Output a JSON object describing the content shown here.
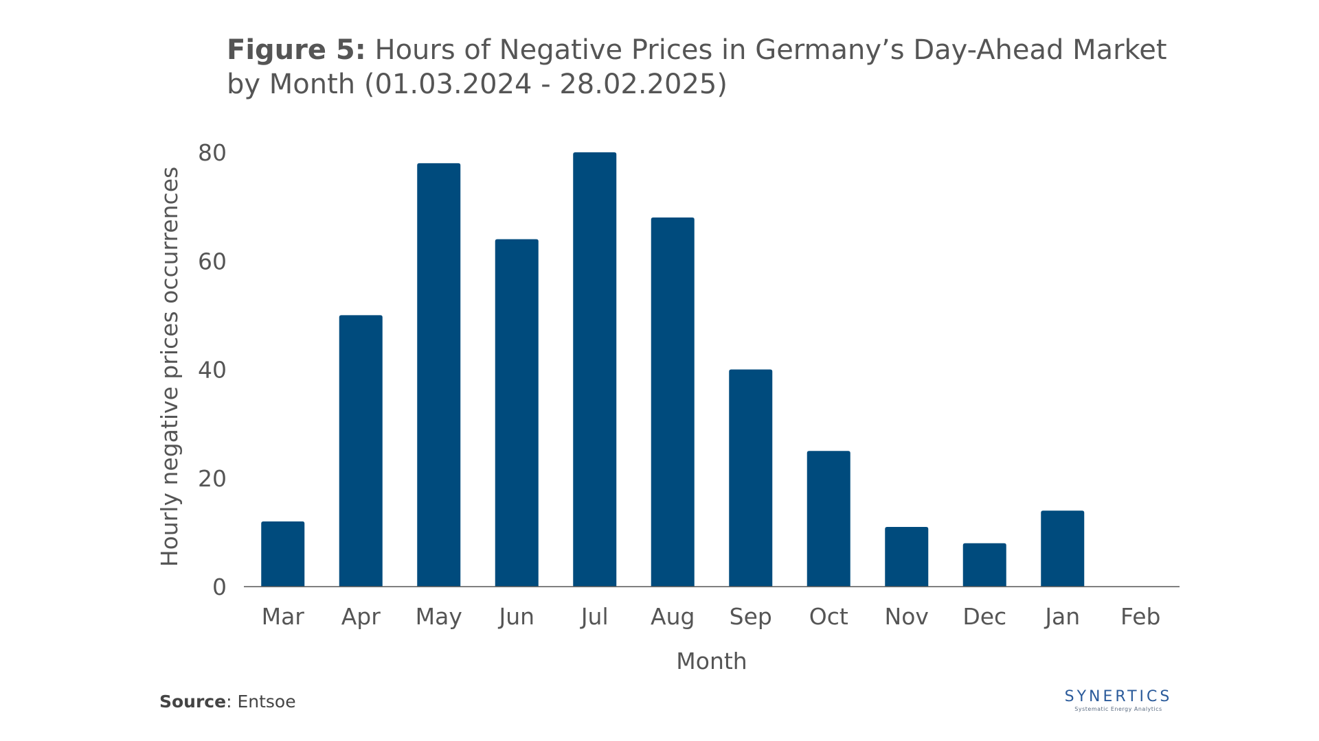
{
  "header": {
    "figure_label": "Figure 5:",
    "title_text": "Hours of Negative Prices in Germany’s Day-Ahead Market by Month (01.03.2024 -  28.02.2025)"
  },
  "chart_data": {
    "type": "bar",
    "title": "Figure 5: Hours of Negative Prices in Germany’s Day-Ahead Market by Month (01.03.2024 -  28.02.2025)",
    "xlabel": "Month",
    "ylabel": "Hourly negative prices occurrences",
    "categories": [
      "Mar",
      "Apr",
      "May",
      "Jun",
      "Jul",
      "Aug",
      "Sep",
      "Oct",
      "Nov",
      "Dec",
      "Jan",
      "Feb"
    ],
    "values": [
      12,
      50,
      78,
      64,
      80,
      68,
      40,
      25,
      11,
      8,
      14,
      0
    ],
    "ylim": [
      0,
      80
    ],
    "yticks": [
      0,
      20,
      40,
      60,
      80
    ],
    "grid": false,
    "bar_color": "#004b7d"
  },
  "footer": {
    "source_label": "Source",
    "source_text": ": Entsoe",
    "logo_name": "SYNERTICS",
    "logo_tagline": "Systematic Energy Analytics"
  }
}
